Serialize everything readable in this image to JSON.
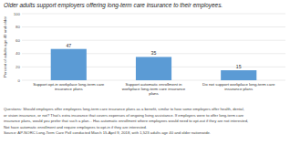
{
  "chart_data": {
    "type": "bar",
    "title": "Older adults support employers offering long-term care insurance to their employees.",
    "categories": [
      "Support opt-in workplace long-term care\ninsurance plans",
      "Support automatic enrollment in\nworkplace long-term care insurance\nplans",
      "Do not support workplace long-term care\ninsurance plans"
    ],
    "values": [
      47,
      35,
      15
    ],
    "color": "#5b9bd5",
    "ylabel": "Percent of adults age 40 and older",
    "ylim": [
      0,
      100
    ],
    "yticks": [
      0,
      20,
      40,
      60,
      80,
      100
    ],
    "grid": true,
    "data_labels": true,
    "notes": [
      "Questions: Should employers offer employees long-term care insurance plans as a benefit, similar to how some employers offer health, dental,",
      "or vision insurance, or not? That's extra insurance that covers expenses of ongoing living assistance. If employers were to offer long-term care",
      "insurance plans, would you prefer that such a plan...  Has automatic enrollment where employees would need to opt-out if they are not interested,",
      "Not have automatic enrollment and require employees to opt-in if they are interested.",
      "Source: AP-NORC Long-Term Care Poll conducted March 15-April 9, 2018, with 1,523 adults age 40 and older nationwide."
    ]
  }
}
